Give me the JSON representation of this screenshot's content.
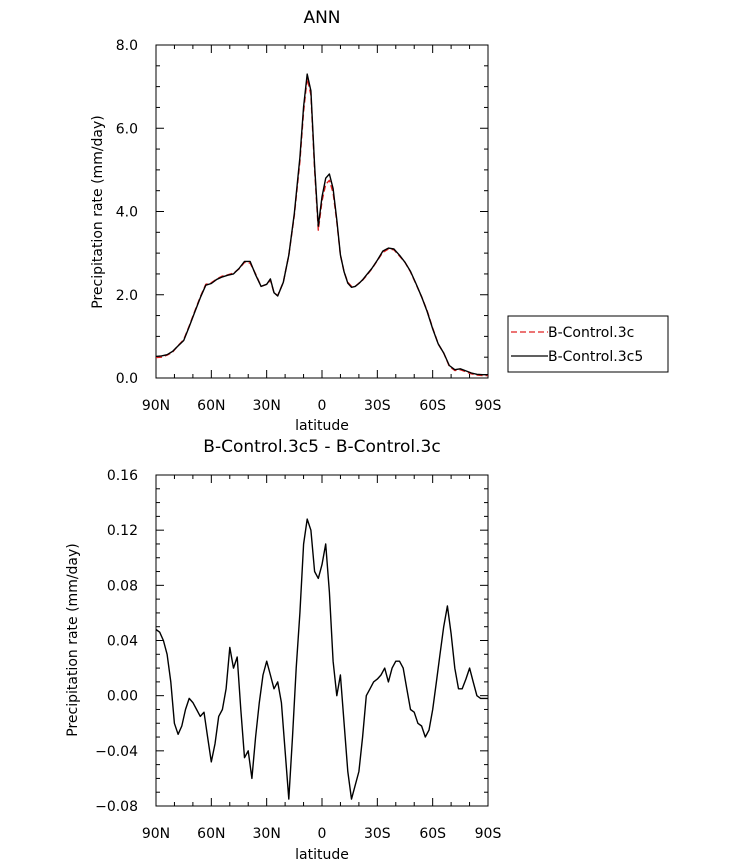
{
  "chart_data": [
    {
      "type": "line",
      "title": "ANN",
      "xlabel": "latitude",
      "ylabel": "Precipitation rate (mm/day)",
      "xlim": [
        90,
        -90
      ],
      "ylim": [
        0,
        8
      ],
      "xticks": [
        90,
        60,
        30,
        0,
        -30,
        -60,
        -90
      ],
      "xtick_labels": [
        "90N",
        "60N",
        "30N",
        "0",
        "30S",
        "60S",
        "90S"
      ],
      "yticks": [
        0,
        2,
        4,
        6,
        8
      ],
      "ytick_labels": [
        "0.0",
        "2.0",
        "4.0",
        "6.0",
        "8.0"
      ],
      "legend": {
        "position": "right",
        "entries": [
          "B-Control.3c",
          "B-Control.3c5"
        ]
      },
      "series": [
        {
          "name": "B-Control.3c",
          "color": "#e02020",
          "dash": "dashed",
          "x": [
            90,
            87,
            84,
            81,
            78,
            75,
            72,
            69,
            66,
            63,
            60,
            57,
            54,
            51,
            48,
            45,
            42,
            39,
            36,
            33,
            30,
            28,
            26,
            24,
            21,
            18,
            15,
            12,
            10,
            8,
            6,
            4,
            2,
            0,
            -2,
            -4,
            -6,
            -8,
            -10,
            -12,
            -14,
            -16,
            -18,
            -20,
            -22,
            -24,
            -27,
            -30,
            -33,
            -36,
            -39,
            -42,
            -45,
            -48,
            -51,
            -54,
            -57,
            -60,
            -63,
            -66,
            -69,
            -72,
            -75,
            -78,
            -81,
            -84,
            -87,
            -90
          ],
          "values": [
            0.49,
            0.5,
            0.55,
            0.62,
            0.78,
            0.92,
            1.25,
            1.6,
            1.95,
            2.25,
            2.29,
            2.38,
            2.45,
            2.48,
            2.52,
            2.62,
            2.78,
            2.76,
            2.5,
            2.2,
            2.25,
            2.35,
            2.05,
            1.98,
            2.3,
            2.95,
            3.9,
            5.2,
            6.4,
            7.2,
            6.8,
            5.0,
            3.55,
            4.25,
            4.65,
            4.75,
            4.45,
            3.75,
            2.95,
            2.55,
            2.3,
            2.2,
            2.2,
            2.28,
            2.35,
            2.45,
            2.62,
            2.82,
            3.02,
            3.1,
            3.08,
            2.93,
            2.78,
            2.55,
            2.25,
            1.95,
            1.62,
            1.2,
            0.82,
            0.6,
            0.28,
            0.18,
            0.2,
            0.15,
            0.1,
            0.07,
            0.06,
            0.06
          ]
        },
        {
          "name": "B-Control.3c5",
          "color": "#000000",
          "dash": "solid",
          "x": [
            90,
            87,
            84,
            81,
            78,
            75,
            72,
            69,
            66,
            63,
            60,
            57,
            54,
            51,
            48,
            45,
            42,
            39,
            36,
            33,
            30,
            28,
            26,
            24,
            21,
            18,
            15,
            12,
            10,
            8,
            6,
            4,
            2,
            0,
            -2,
            -4,
            -6,
            -8,
            -10,
            -12,
            -14,
            -16,
            -18,
            -20,
            -22,
            -24,
            -27,
            -30,
            -33,
            -36,
            -39,
            -42,
            -45,
            -48,
            -51,
            -54,
            -57,
            -60,
            -63,
            -66,
            -69,
            -72,
            -75,
            -78,
            -81,
            -84,
            -87,
            -90
          ],
          "values": [
            0.52,
            0.53,
            0.56,
            0.64,
            0.77,
            0.9,
            1.23,
            1.58,
            1.93,
            2.23,
            2.27,
            2.37,
            2.43,
            2.47,
            2.5,
            2.63,
            2.8,
            2.8,
            2.48,
            2.2,
            2.25,
            2.38,
            2.05,
            1.97,
            2.3,
            2.95,
            3.95,
            5.3,
            6.52,
            7.3,
            6.9,
            5.1,
            3.65,
            4.35,
            4.8,
            4.9,
            4.55,
            3.8,
            2.96,
            2.55,
            2.28,
            2.18,
            2.2,
            2.27,
            2.36,
            2.47,
            2.63,
            2.83,
            3.05,
            3.12,
            3.1,
            2.95,
            2.78,
            2.56,
            2.26,
            1.95,
            1.6,
            1.18,
            0.82,
            0.6,
            0.3,
            0.2,
            0.22,
            0.17,
            0.12,
            0.09,
            0.08,
            0.08
          ]
        }
      ]
    },
    {
      "type": "line",
      "title": "B-Control.3c5 - B-Control.3c",
      "xlabel": "latitude",
      "ylabel": "Precipitation rate (mm/day)",
      "xlim": [
        90,
        -90
      ],
      "ylim": [
        -0.08,
        0.16
      ],
      "xticks": [
        90,
        60,
        30,
        0,
        -30,
        -60,
        -90
      ],
      "xtick_labels": [
        "90N",
        "60N",
        "30N",
        "0",
        "30S",
        "60S",
        "90S"
      ],
      "yticks": [
        -0.08,
        -0.04,
        0,
        0.04,
        0.08,
        0.12,
        0.16
      ],
      "ytick_labels": [
        "−0.08",
        "−0.04",
        "0.00",
        "0.04",
        "0.08",
        "0.12",
        "0.16"
      ],
      "series": [
        {
          "name": "B-Control.3c5 - B-Control.3c",
          "color": "#000000",
          "dash": "solid",
          "x": [
            90,
            88,
            86,
            84,
            82,
            80,
            78,
            76,
            74,
            72,
            70,
            68,
            66,
            64,
            62,
            60,
            58,
            56,
            54,
            52,
            50,
            48,
            46,
            44,
            42,
            40,
            38,
            36,
            34,
            32,
            30,
            28,
            26,
            24,
            22,
            20,
            18,
            16,
            14,
            12,
            10,
            8,
            6,
            4,
            2,
            0,
            -2,
            -4,
            -6,
            -8,
            -10,
            -12,
            -14,
            -16,
            -18,
            -20,
            -22,
            -24,
            -26,
            -28,
            -30,
            -32,
            -34,
            -36,
            -38,
            -40,
            -42,
            -44,
            -46,
            -48,
            -50,
            -52,
            -54,
            -56,
            -58,
            -60,
            -62,
            -64,
            -66,
            -68,
            -70,
            -72,
            -74,
            -76,
            -78,
            -80,
            -82,
            -84,
            -86,
            -88,
            -90
          ],
          "values": [
            0.048,
            0.046,
            0.04,
            0.03,
            0.01,
            -0.02,
            -0.028,
            -0.022,
            -0.01,
            -0.002,
            -0.005,
            -0.01,
            -0.015,
            -0.012,
            -0.03,
            -0.048,
            -0.035,
            -0.015,
            -0.01,
            0.005,
            0.035,
            0.02,
            0.028,
            -0.01,
            -0.045,
            -0.04,
            -0.06,
            -0.03,
            -0.005,
            0.015,
            0.025,
            0.015,
            0.005,
            0.01,
            -0.005,
            -0.04,
            -0.075,
            -0.03,
            0.02,
            0.06,
            0.11,
            0.128,
            0.12,
            0.09,
            0.085,
            0.095,
            0.11,
            0.075,
            0.025,
            0.0,
            0.015,
            -0.02,
            -0.055,
            -0.075,
            -0.065,
            -0.055,
            -0.03,
            0.0,
            0.005,
            0.01,
            0.012,
            0.015,
            0.02,
            0.01,
            0.02,
            0.025,
            0.025,
            0.02,
            0.005,
            -0.01,
            -0.012,
            -0.02,
            -0.022,
            -0.03,
            -0.025,
            -0.01,
            0.01,
            0.03,
            0.05,
            0.065,
            0.045,
            0.02,
            0.005,
            0.005,
            0.012,
            0.02,
            0.01,
            0.0,
            -0.002,
            -0.002,
            -0.002
          ]
        }
      ]
    }
  ]
}
